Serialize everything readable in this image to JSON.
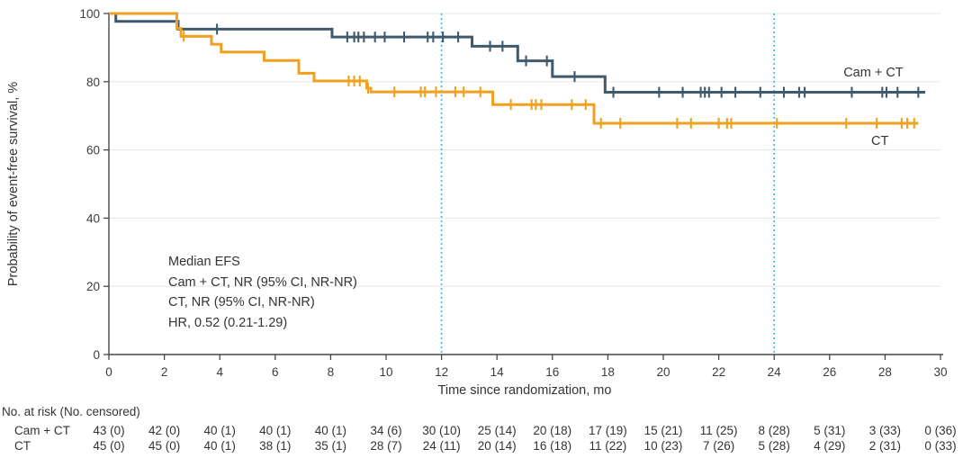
{
  "colors": {
    "cam_ct": "#3e5a6c",
    "ct": "#efa11f",
    "reference_line": "#45b5e8",
    "grid": "#eaeae8",
    "axis": "#474747",
    "text": "#333333"
  },
  "annotation": {
    "lines": [
      "Median EFS",
      "Cam + CT, NR (95% CI, NR-NR)",
      "CT, NR (95% CI, NR-NR)",
      "HR, 0.52 (0.21-1.29)"
    ]
  },
  "chart_data": {
    "type": "line",
    "subtype": "kaplan-meier-step",
    "xlabel": "Time since randomization, mo",
    "ylabel": "Probability of event-free survival, %",
    "xlim": [
      0,
      30
    ],
    "ylim": [
      0,
      100
    ],
    "xticks": [
      0,
      2,
      4,
      6,
      8,
      10,
      12,
      14,
      16,
      18,
      20,
      22,
      24,
      26,
      28,
      30
    ],
    "yticks": [
      0,
      20,
      40,
      60,
      80,
      100
    ],
    "grid": "horizontal",
    "reference_lines_x": [
      12,
      24
    ],
    "legend_position": "inline-right",
    "series": [
      {
        "name": "Cam + CT",
        "color_key": "cam_ct",
        "label_pos": {
          "x": 26.5,
          "y": 81.5
        },
        "steps": [
          [
            0,
            100
          ],
          [
            0.25,
            97.7
          ],
          [
            2.5,
            95.4
          ],
          [
            8.05,
            93.1
          ],
          [
            13.1,
            90.4
          ],
          [
            14.75,
            86.1
          ],
          [
            16.0,
            81.5
          ],
          [
            17.9,
            76.9
          ]
        ],
        "end_x": 29.45,
        "censor_x": [
          3.9,
          8.6,
          8.85,
          9.0,
          9.2,
          9.6,
          9.95,
          10.65,
          11.5,
          11.7,
          12.05,
          12.6,
          13.75,
          14.2,
          15.05,
          15.8,
          16.8,
          18.2,
          19.85,
          20.7,
          21.35,
          21.5,
          21.65,
          22.1,
          22.6,
          23.5,
          24.35,
          24.9,
          25.1,
          26.8,
          27.9,
          28.05,
          28.45,
          29.2
        ]
      },
      {
        "name": "CT",
        "color_key": "ct",
        "label_pos": {
          "x": 27.5,
          "y": 61.5
        },
        "steps": [
          [
            0,
            100
          ],
          [
            2.45,
            95.6
          ],
          [
            2.6,
            93.3
          ],
          [
            3.7,
            91.0
          ],
          [
            4.05,
            88.7
          ],
          [
            5.6,
            86.2
          ],
          [
            6.85,
            82.5
          ],
          [
            7.4,
            80.2
          ],
          [
            9.3,
            78.1
          ],
          [
            9.45,
            77.0
          ],
          [
            13.85,
            73.3
          ],
          [
            17.5,
            67.8
          ]
        ],
        "end_x": 29.2,
        "censor_x": [
          2.7,
          8.65,
          8.85,
          9.05,
          9.35,
          10.3,
          11.25,
          11.4,
          11.8,
          12.5,
          12.8,
          13.4,
          14.5,
          15.25,
          15.4,
          15.6,
          16.7,
          17.2,
          17.75,
          18.45,
          20.5,
          21.0,
          22.0,
          22.3,
          22.45,
          24.1,
          26.6,
          27.7,
          28.6,
          28.8,
          29.05
        ]
      }
    ]
  },
  "risk_table": {
    "header": "No. at risk (No. censored)",
    "times": [
      0,
      2,
      4,
      6,
      8,
      10,
      12,
      14,
      16,
      18,
      20,
      22,
      24,
      26,
      28,
      30
    ],
    "rows": [
      {
        "label": "Cam + CT",
        "values": [
          "43 (0)",
          "42 (0)",
          "40 (1)",
          "40 (1)",
          "40 (1)",
          "34 (6)",
          "30 (10)",
          "25 (14)",
          "20 (18)",
          "17 (19)",
          "15 (21)",
          "11 (25)",
          "8 (28)",
          "5 (31)",
          "3 (33)",
          "0 (36)"
        ]
      },
      {
        "label": "CT",
        "values": [
          "45 (0)",
          "45 (0)",
          "40 (1)",
          "38 (1)",
          "35 (1)",
          "28 (7)",
          "24 (11)",
          "20 (14)",
          "16 (18)",
          "11 (22)",
          "10 (23)",
          "7 (26)",
          "5 (28)",
          "4 (29)",
          "2 (31)",
          "0 (33)"
        ]
      }
    ]
  }
}
